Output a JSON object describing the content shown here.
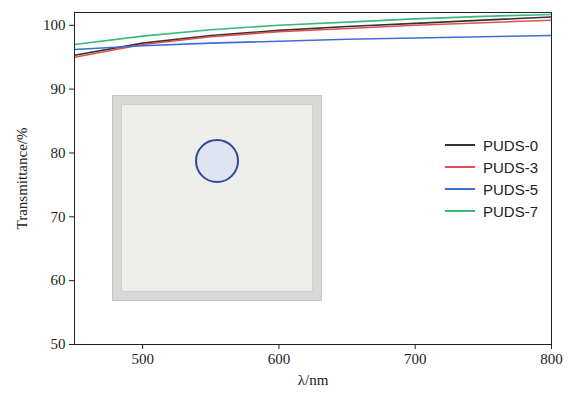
{
  "chart_data": {
    "type": "line",
    "x_label": "λ/nm",
    "y_label": "Transmittance/%",
    "x": [
      450,
      500,
      550,
      600,
      650,
      700,
      750,
      800
    ],
    "series": [
      {
        "name": "PUDS-0",
        "color": "#333333",
        "values": [
          95.3,
          97.2,
          98.4,
          99.2,
          99.8,
          100.3,
          100.8,
          101.3
        ]
      },
      {
        "name": "PUDS-3",
        "color": "#e05050",
        "values": [
          95.0,
          97.0,
          98.2,
          99.0,
          99.5,
          100.0,
          100.4,
          100.8
        ]
      },
      {
        "name": "PUDS-5",
        "color": "#3b6fd6",
        "values": [
          96.2,
          96.8,
          97.2,
          97.5,
          97.8,
          98.0,
          98.2,
          98.4
        ]
      },
      {
        "name": "PUDS-7",
        "color": "#3cb878",
        "values": [
          97.0,
          98.3,
          99.3,
          100.0,
          100.5,
          101.0,
          101.4,
          101.7
        ]
      }
    ],
    "xlim": [
      450,
      800
    ],
    "ylim": [
      50,
      102
    ],
    "xticks": [
      500,
      600,
      700,
      800
    ],
    "yticks": [
      50,
      60,
      70,
      80,
      90,
      100
    ],
    "grid": false,
    "legend": "right"
  }
}
